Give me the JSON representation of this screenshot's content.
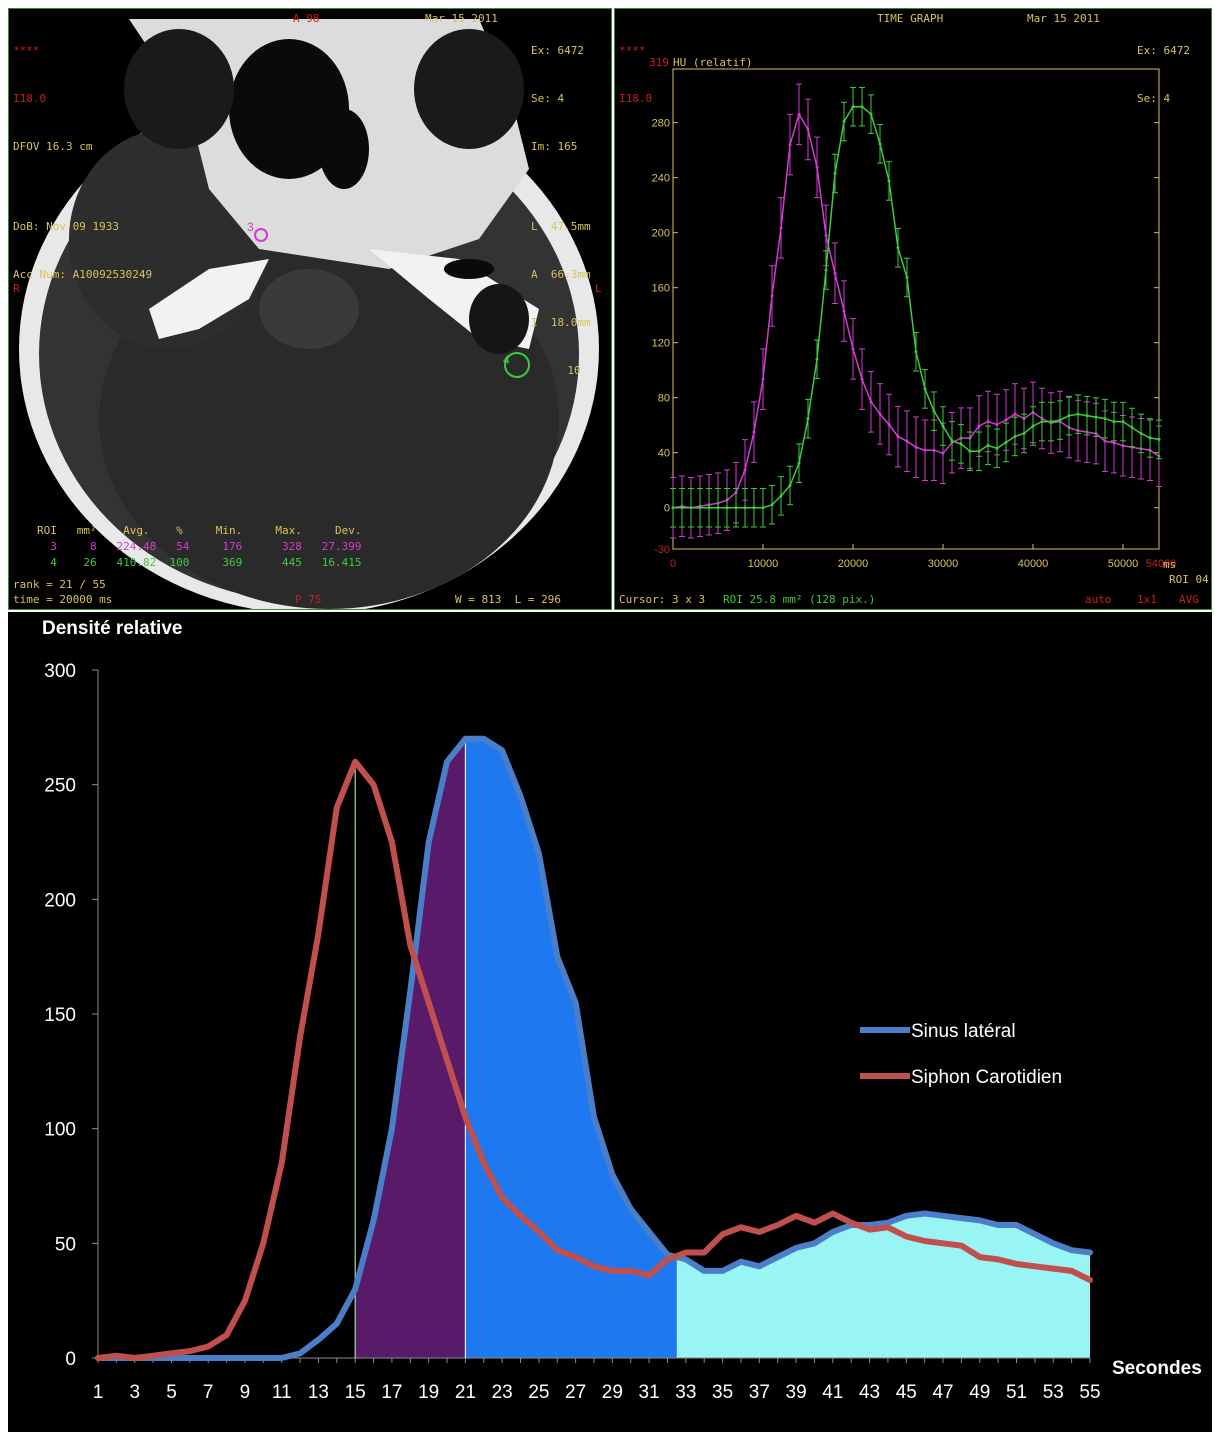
{
  "ct": {
    "top_left": [
      "****",
      "I18.0",
      "DFOV 16.3 cm",
      "",
      "DoB: Nov 09 1933",
      "Acc Num: A10092530249"
    ],
    "top_mid": "A 98",
    "top_date": "Mar 15 2011",
    "top_right": [
      "Ex: 6472",
      "Se: 4",
      "Im: 165",
      "",
      "L  47.5mm",
      "A  66.3mm",
      "I  18.0mm",
      "10"
    ],
    "side_r": "R",
    "side_l": "L",
    "roi_table_header": "ROI   mm²    Avg.    %     Min.     Max.     Dev.",
    "roi_rows": [
      "  3     8   224.48   54     176      328   27.399",
      "  4    26   410.82  100     369      445   16.415"
    ],
    "rank": "rank = 21 / 55",
    "time": "time = 20000 ms",
    "bottom_mid": "P 75",
    "bottom_right": "W = 813  L = 296",
    "roi_labels": [
      "3",
      "4"
    ]
  },
  "timegraph": {
    "top_left": [
      "****",
      "I18.0"
    ],
    "title": "TIME GRAPH",
    "date": "Mar 15 2011",
    "top_right": [
      "Ex: 6472",
      "Se: 4"
    ],
    "ylabel": "HU (relatif)",
    "ymax_label": "319",
    "yticks": [
      "280",
      "240",
      "200",
      "160",
      "120",
      "80",
      "40",
      "0",
      "-30"
    ],
    "xticks": [
      "0",
      "10000",
      "20000",
      "30000",
      "40000",
      "50000"
    ],
    "xmax_label": "54000",
    "xunit": "ms",
    "roi_label": "ROI 04",
    "cursor_text": "Cursor: 3 x 3",
    "roi_text": "ROI 25.8 mm² (128 pix.)",
    "bottom_right": [
      "auto",
      "1x1",
      "AVG"
    ],
    "colors": {
      "roi3": "#d23cd2",
      "roi4": "#3ccc3c"
    }
  },
  "chart_data": {
    "type": "line",
    "ylabel": "Densité relative",
    "xlabel": "Secondes",
    "ylim": [
      0,
      300
    ],
    "yticks": [
      0,
      50,
      100,
      150,
      200,
      250,
      300
    ],
    "x": [
      1,
      2,
      3,
      4,
      5,
      6,
      7,
      8,
      9,
      10,
      11,
      12,
      13,
      14,
      15,
      16,
      17,
      18,
      19,
      20,
      21,
      22,
      23,
      24,
      25,
      26,
      27,
      28,
      29,
      30,
      31,
      32,
      33,
      34,
      35,
      36,
      37,
      38,
      39,
      40,
      41,
      42,
      43,
      44,
      45,
      46,
      47,
      48,
      49,
      50,
      51,
      52,
      53,
      54,
      55
    ],
    "xticks": [
      1,
      3,
      5,
      7,
      9,
      11,
      13,
      15,
      17,
      19,
      21,
      23,
      25,
      27,
      29,
      31,
      33,
      35,
      37,
      39,
      41,
      43,
      45,
      47,
      49,
      51,
      53,
      55
    ],
    "series": [
      {
        "name": "Sinus latéral",
        "color": "#4a7ec8",
        "values": [
          0,
          0,
          0,
          0,
          0,
          0,
          0,
          0,
          0,
          0,
          0,
          2,
          8,
          15,
          30,
          60,
          100,
          160,
          225,
          260,
          270,
          270,
          265,
          245,
          220,
          175,
          155,
          105,
          80,
          65,
          55,
          45,
          43,
          38,
          38,
          42,
          40,
          44,
          48,
          50,
          55,
          58,
          58,
          59,
          62,
          63,
          62,
          61,
          60,
          58,
          58,
          54,
          50,
          47,
          46
        ]
      },
      {
        "name": "Siphon Carotidien",
        "color": "#c0504d",
        "values": [
          0,
          1,
          0,
          1,
          2,
          3,
          5,
          10,
          25,
          50,
          85,
          140,
          185,
          240,
          260,
          250,
          225,
          180,
          155,
          130,
          105,
          85,
          70,
          62,
          55,
          47,
          44,
          40,
          38,
          38,
          36,
          43,
          46,
          46,
          54,
          57,
          55,
          58,
          62,
          59,
          63,
          59,
          56,
          57,
          53,
          51,
          50,
          49,
          44,
          43,
          41,
          40,
          39,
          38,
          34
        ]
      }
    ],
    "shaded_regions": [
      {
        "from": 15,
        "to": 21,
        "color": "#5a1a6a"
      },
      {
        "from": 21,
        "to": 32.5,
        "color": "#1e78f0"
      },
      {
        "from": 32.5,
        "to": 55,
        "color": "#99f4f4"
      }
    ],
    "vertical_markers": [
      15,
      21
    ],
    "legend_position": "right"
  }
}
